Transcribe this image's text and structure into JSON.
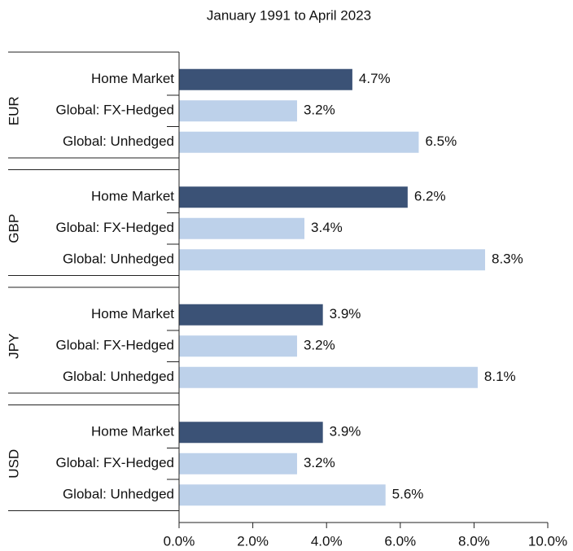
{
  "chart_data": {
    "type": "bar",
    "orientation": "horizontal",
    "title": "January 1991 to April 2023",
    "categories": [
      "EUR",
      "GBP",
      "JPY",
      "USD"
    ],
    "series": [
      {
        "name": "Home Market",
        "color": "#3b5276",
        "values": [
          4.7,
          6.2,
          3.9,
          3.9
        ],
        "value_labels": [
          "4.7%",
          "6.2%",
          "3.9%",
          "3.9%"
        ]
      },
      {
        "name": "Global: FX-Hedged",
        "color": "#bdd1ea",
        "values": [
          3.2,
          3.4,
          3.2,
          3.2
        ],
        "value_labels": [
          "3.2%",
          "3.4%",
          "3.2%",
          "3.2%"
        ]
      },
      {
        "name": "Global: Unhedged",
        "color": "#bdd1ea",
        "values": [
          6.5,
          8.3,
          8.1,
          5.6
        ],
        "value_labels": [
          "6.5%",
          "8.3%",
          "8.1%",
          "5.6%"
        ]
      }
    ],
    "xlim": [
      0,
      10
    ],
    "xticks": [
      {
        "value": 0,
        "label": "0.0%"
      },
      {
        "value": 2,
        "label": "2.0%"
      },
      {
        "value": 4,
        "label": "4.0%"
      },
      {
        "value": 6,
        "label": "6.0%"
      },
      {
        "value": 8,
        "label": "8.0%"
      },
      {
        "value": 10,
        "label": "10.0%"
      }
    ]
  }
}
